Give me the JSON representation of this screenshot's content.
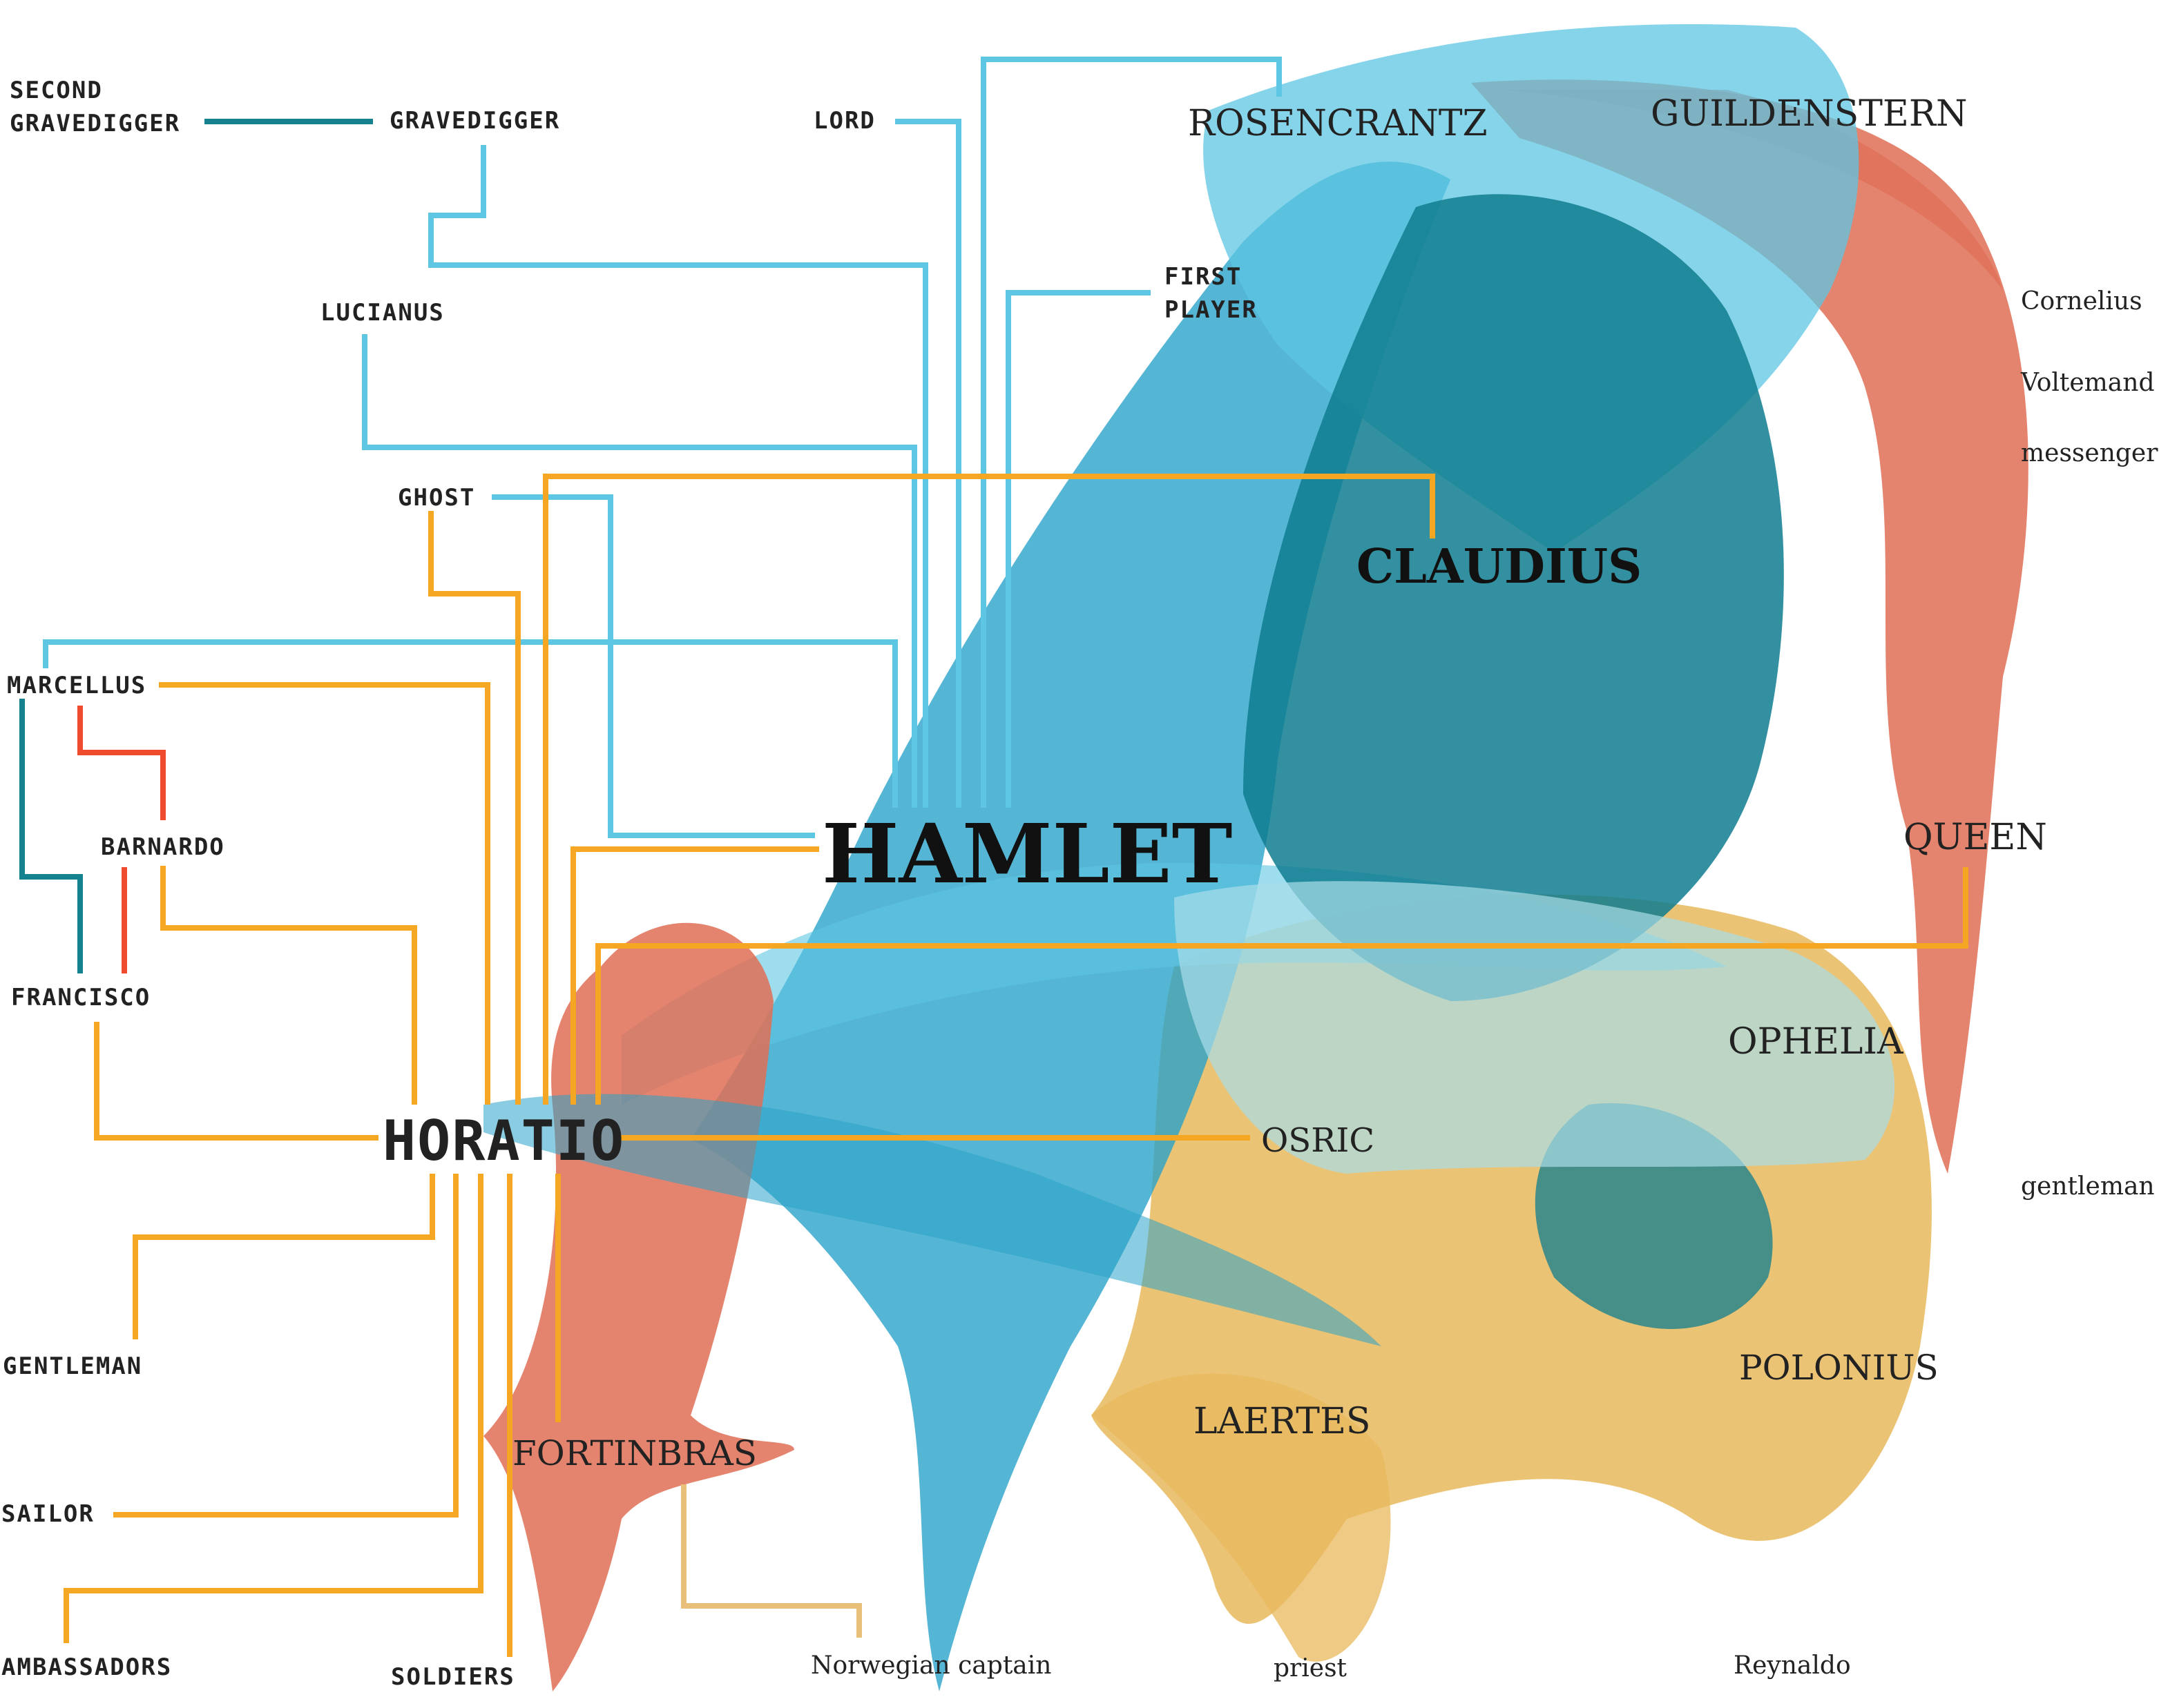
{
  "colors": {
    "hamlet_links": "#5cc6e3",
    "horatio_links": "#f5a623",
    "guard_links_red": "#ef4b2d",
    "guard_links_teal": "#15838f",
    "fortinbras_links": "#e9c07a",
    "claudius_blob": "#0f7d8f",
    "hamlet_blob": "#2aa3c9",
    "queen_blob": "#e06e55",
    "polonius_blob": "#e8b85c"
  },
  "characters": {
    "hamlet": "HAMLET",
    "claudius": "CLAUDIUS",
    "horatio": "HORATIO",
    "rosencrantz": "ROSENCRANTZ",
    "guildenstern": "GUILDENSTERN",
    "queen": "QUEEN",
    "ophelia": "OPHELIA",
    "osric": "OSRIC",
    "polonius": "POLONIUS",
    "laertes": "LAERTES",
    "fortinbras": "FORTINBRAS",
    "cornelius": "Cornelius",
    "voltemand": "Voltemand",
    "messengers": "messengers",
    "gentleman_lower": "gentleman",
    "norwegian_captain": "Norwegian captain",
    "priest": "priest",
    "reynaldo": "Reynaldo",
    "second_gravedigger_line1": "SECOND",
    "second_gravedigger_line2": "GRAVEDIGGER",
    "gravedigger": "GRAVEDIGGER",
    "lord": "LORD",
    "first_player_line1": "FIRST",
    "first_player_line2": "PLAYER",
    "lucianus": "LUCIANUS",
    "ghost": "GHOST",
    "marcellus": "MARCELLUS",
    "barnardo": "BARNARDO",
    "francisco": "FRANCISCO",
    "gentleman_upper": "GENTLEMAN",
    "sailor": "SAILOR",
    "ambassadors": "AMBASSADORS",
    "soldiers": "SOLDIERS"
  }
}
